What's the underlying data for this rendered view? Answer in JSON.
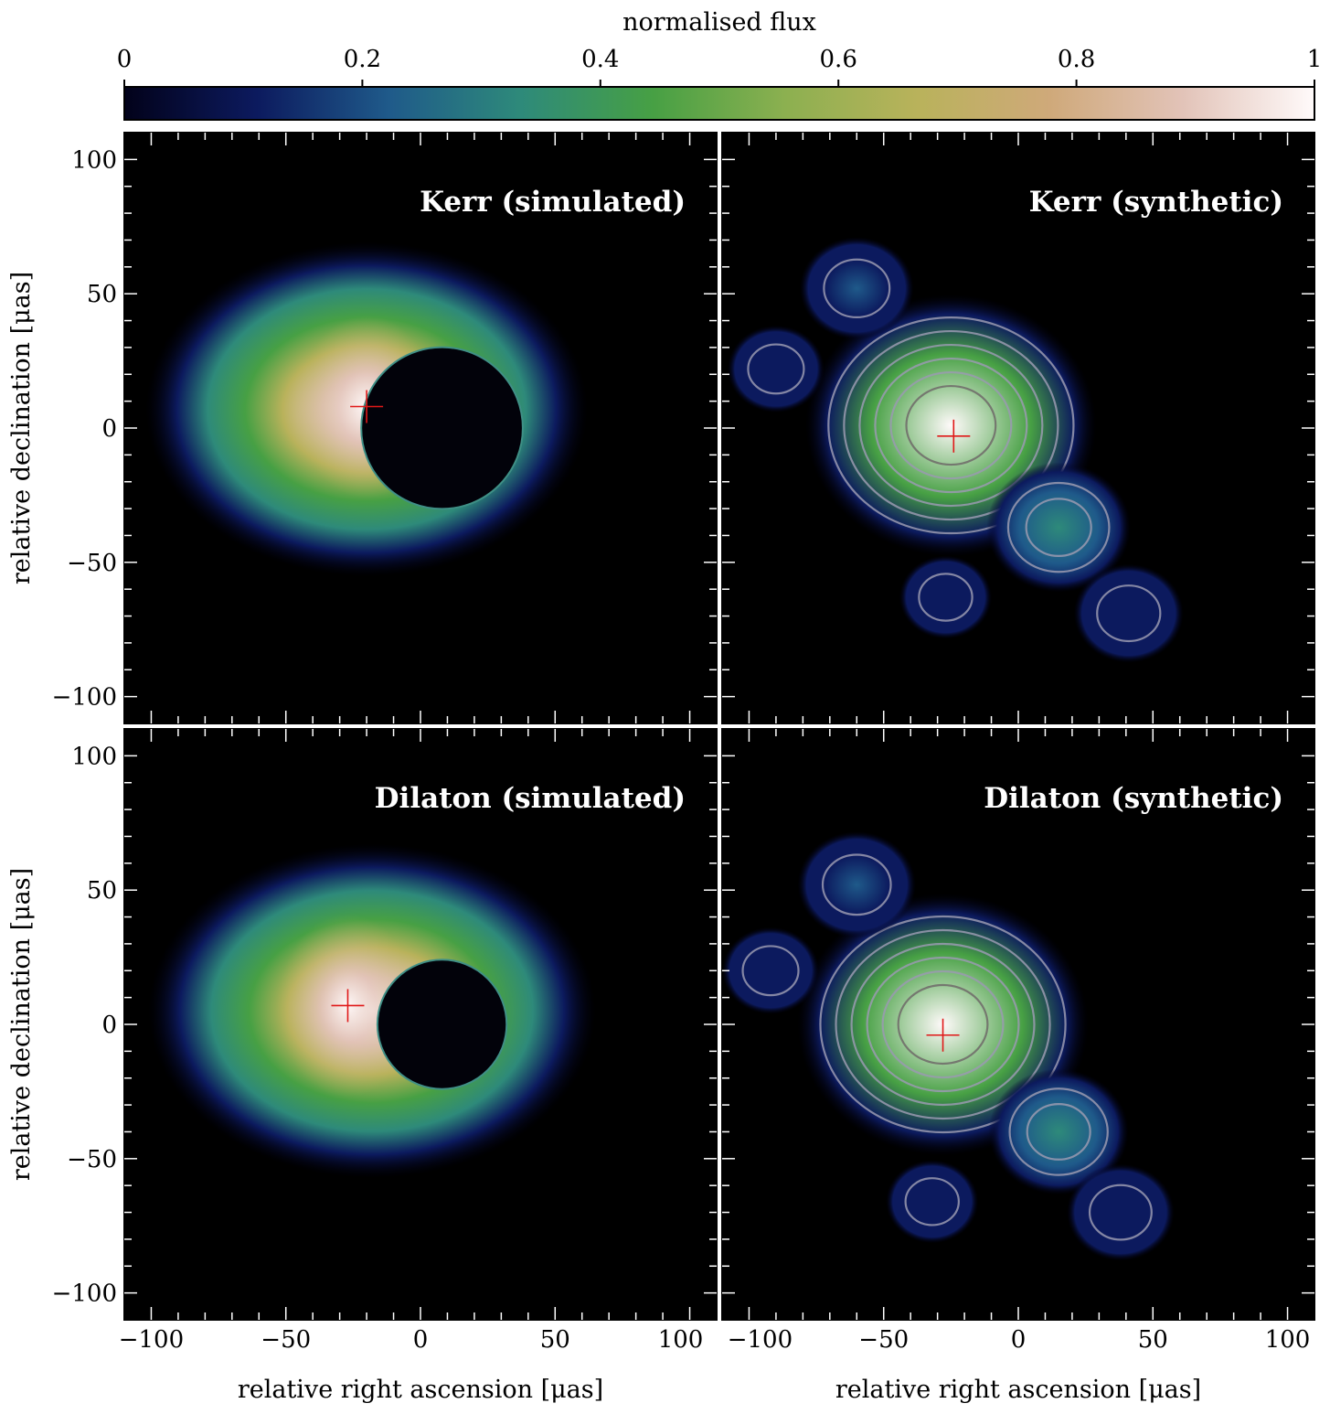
{
  "colorbar": {
    "label": "normalised flux",
    "ticks": [
      0,
      0.2,
      0.4,
      0.6,
      0.8,
      1
    ],
    "tick_labels": [
      "0",
      "0.2",
      "0.4",
      "0.6",
      "0.8",
      "1"
    ],
    "range": [
      0,
      1
    ],
    "colormap": [
      "#02021a",
      "#0c1a5e",
      "#1f5a8a",
      "#2e8a7a",
      "#47a044",
      "#8cb050",
      "#b9b25b",
      "#cfa97a",
      "#e2c3b8",
      "#fffafa"
    ]
  },
  "chart_data": [
    {
      "type": "heatmap",
      "title": "Kerr (simulated)",
      "xlabel": "",
      "ylabel": "relative declination [μas]",
      "xlim": [
        -110,
        110
      ],
      "ylim": [
        -110,
        110
      ],
      "xticks": [
        -100,
        -50,
        0,
        50,
        100
      ],
      "yticks": [
        100,
        50,
        0,
        -50,
        -100
      ],
      "ytick_labels": [
        "100",
        "50",
        "0",
        "−50",
        "−100"
      ],
      "peak_marker": {
        "x": -20,
        "y": 8
      },
      "shadow": {
        "x": 8,
        "y": 0,
        "r": 30
      },
      "emission": {
        "x": -20,
        "y": 7,
        "rx": 82,
        "ry": 62
      },
      "contours": false
    },
    {
      "type": "heatmap",
      "title": "Kerr (synthetic)",
      "xlabel": "",
      "ylabel": "",
      "xlim": [
        -110,
        110
      ],
      "ylim": [
        -110,
        110
      ],
      "xticks": [
        -100,
        -50,
        0,
        50,
        100
      ],
      "yticks": [
        100,
        50,
        0,
        -50,
        -100
      ],
      "peak_marker": {
        "x": -24,
        "y": -3
      },
      "blobs": [
        {
          "x": -25,
          "y": 1,
          "peak": 1.0
        },
        {
          "x": 15,
          "y": -37,
          "peak": 0.32
        },
        {
          "x": -60,
          "y": 52,
          "peak": 0.18
        },
        {
          "x": 41,
          "y": -69,
          "peak": 0.16
        },
        {
          "x": -90,
          "y": 22,
          "peak": 0.1
        },
        {
          "x": -27,
          "y": -63,
          "peak": 0.08
        }
      ],
      "contours": true
    },
    {
      "type": "heatmap",
      "title": "Dilaton (simulated)",
      "xlabel": "relative right ascension [μas]",
      "ylabel": "relative declination [μas]",
      "xlim": [
        -110,
        110
      ],
      "ylim": [
        -110,
        110
      ],
      "xticks": [
        -100,
        -50,
        0,
        50,
        100
      ],
      "xtick_labels": [
        "−100",
        "−50",
        "0",
        "50",
        "100"
      ],
      "yticks": [
        100,
        50,
        0,
        -50,
        -100
      ],
      "ytick_labels": [
        "100",
        "50",
        "0",
        "−50",
        "−100"
      ],
      "peak_marker": {
        "x": -27,
        "y": 7
      },
      "shadow": {
        "x": 8,
        "y": 0,
        "r": 24
      },
      "emission": {
        "x": -18,
        "y": 5,
        "rx": 83,
        "ry": 62
      },
      "contours": false
    },
    {
      "type": "heatmap",
      "title": "Dilaton (synthetic)",
      "xlabel": "relative right ascension [μas]",
      "ylabel": "",
      "xlim": [
        -110,
        110
      ],
      "ylim": [
        -110,
        110
      ],
      "xticks": [
        -100,
        -50,
        0,
        50,
        100
      ],
      "xtick_labels": [
        "−100",
        "−50",
        "0",
        "50",
        "100"
      ],
      "yticks": [
        100,
        50,
        0,
        -50,
        -100
      ],
      "peak_marker": {
        "x": -28,
        "y": -4
      },
      "blobs": [
        {
          "x": -28,
          "y": 0,
          "peak": 1.0
        },
        {
          "x": 15,
          "y": -40,
          "peak": 0.3
        },
        {
          "x": -60,
          "y": 52,
          "peak": 0.2
        },
        {
          "x": 38,
          "y": -70,
          "peak": 0.15
        },
        {
          "x": -92,
          "y": 20,
          "peak": 0.1
        },
        {
          "x": -32,
          "y": -66,
          "peak": 0.08
        }
      ],
      "contours": true
    }
  ]
}
